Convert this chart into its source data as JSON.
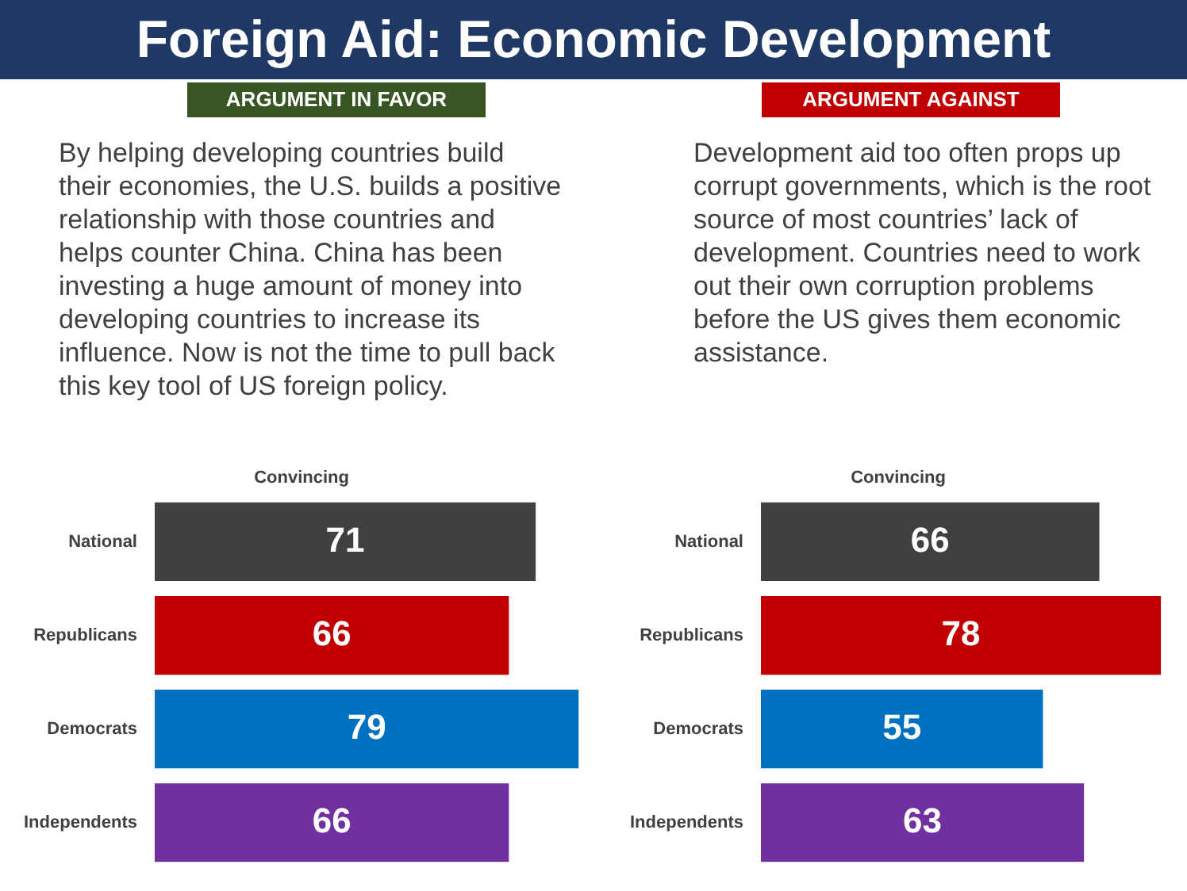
{
  "chart_data": [
    {
      "type": "other",
      "title": "Foreign Aid: Economic Development"
    },
    {
      "type": "bar",
      "orientation": "horizontal",
      "subtitle": "ARGUMENT IN FAVOR",
      "title": "Convincing",
      "annotations": [
        "By helping developing countries build their economies, the U.S. builds a positive relationship with those countries and helps counter China. China has been investing a huge amount of money into developing countries to increase its influence. Now is not the time to pull back this key tool of US foreign policy."
      ],
      "categories": [
        "National",
        "Republicans",
        "Democrats",
        "Independents"
      ],
      "values": [
        71,
        66,
        79,
        66
      ],
      "colors": [
        "#404040",
        "#c00000",
        "#0070c0",
        "#7030a0"
      ],
      "data_labels": true
    },
    {
      "type": "bar",
      "orientation": "horizontal",
      "subtitle": "ARGUMENT AGAINST",
      "title": "Convincing",
      "annotations": [
        "Development aid too often props up corrupt governments, which is the root source of most countries’ lack of development. Countries need to work out their own corruption problems before the US gives them economic assistance."
      ],
      "categories": [
        "National",
        "Republicans",
        "Democrats",
        "Independents"
      ],
      "values": [
        66,
        78,
        55,
        63
      ],
      "colors": [
        "#404040",
        "#c00000",
        "#0070c0",
        "#7030a0"
      ],
      "data_labels": true
    }
  ]
}
